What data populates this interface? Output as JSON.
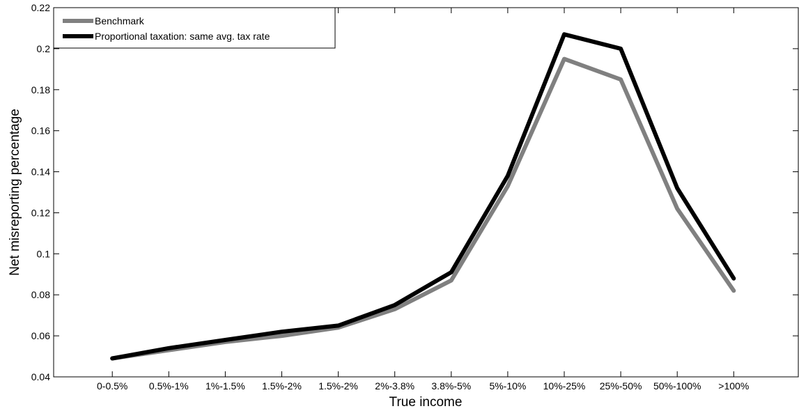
{
  "chart_data": {
    "type": "line",
    "title": "",
    "xlabel": "True income",
    "ylabel": "Net misreporting percentage",
    "categories": [
      "0-0.5%",
      "0.5%-1%",
      "1%-1.5%",
      "1.5%-2%",
      "1.5%-2%",
      "2%-3.8%",
      "3.8%-5%",
      "5%-10%",
      "10%-25%",
      "25%-50%",
      "50%-100%",
      ">100%"
    ],
    "ylim": [
      0.04,
      0.22
    ],
    "yticks": [
      0.04,
      0.06,
      0.08,
      0.1,
      0.12,
      0.14,
      0.16,
      0.18,
      0.2,
      0.22
    ],
    "ytick_labels": [
      "0.04",
      "0.06",
      "0.08",
      "0.1",
      "0.12",
      "0.14",
      "0.16",
      "0.18",
      "0.2",
      "0.22"
    ],
    "grid": false,
    "legend_position": "top-left",
    "series": [
      {
        "name": "Benchmark",
        "color": "#808080",
        "values": [
          0.049,
          0.053,
          0.057,
          0.06,
          0.064,
          0.073,
          0.087,
          0.133,
          0.195,
          0.185,
          0.122,
          0.082
        ]
      },
      {
        "name": "Proportional taxation: same avg. tax rate",
        "color": "#000000",
        "values": [
          0.049,
          0.054,
          0.058,
          0.062,
          0.065,
          0.075,
          0.091,
          0.138,
          0.207,
          0.2,
          0.132,
          0.088
        ]
      }
    ]
  }
}
